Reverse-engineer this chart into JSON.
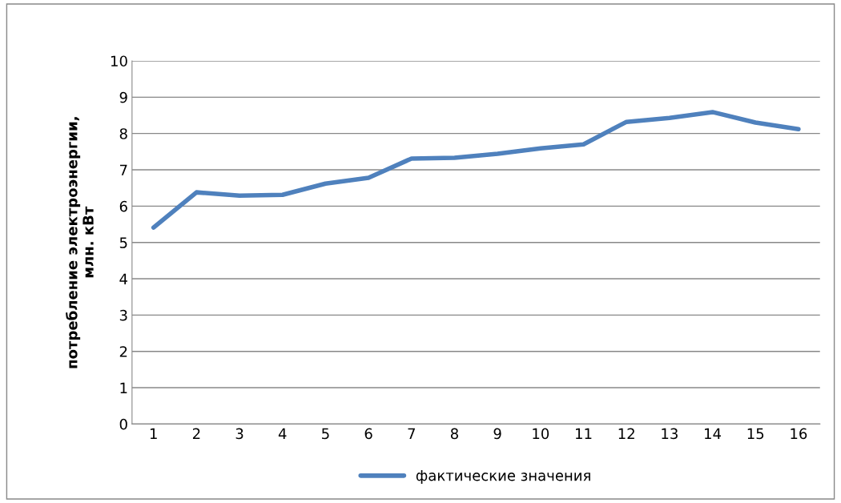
{
  "chart_data": {
    "type": "line",
    "ylabel": "потребление электроэнергии,\nмлн. кВт",
    "categories": [
      "1",
      "2",
      "3",
      "4",
      "5",
      "6",
      "7",
      "8",
      "9",
      "10",
      "11",
      "12",
      "13",
      "14",
      "15",
      "16"
    ],
    "series": [
      {
        "name": "фактические значения",
        "color": "#4f81bd",
        "values": [
          5.41,
          6.38,
          6.29,
          6.31,
          6.62,
          6.78,
          7.31,
          7.33,
          7.44,
          7.59,
          7.7,
          8.32,
          8.43,
          8.59,
          8.3,
          8.12
        ]
      }
    ],
    "ylim": [
      0,
      10
    ],
    "yticks": [
      0,
      1,
      2,
      3,
      4,
      5,
      6,
      7,
      8,
      9,
      10
    ],
    "grid": "y",
    "legend": "bottom",
    "marker": "none",
    "line_style": "solid"
  }
}
